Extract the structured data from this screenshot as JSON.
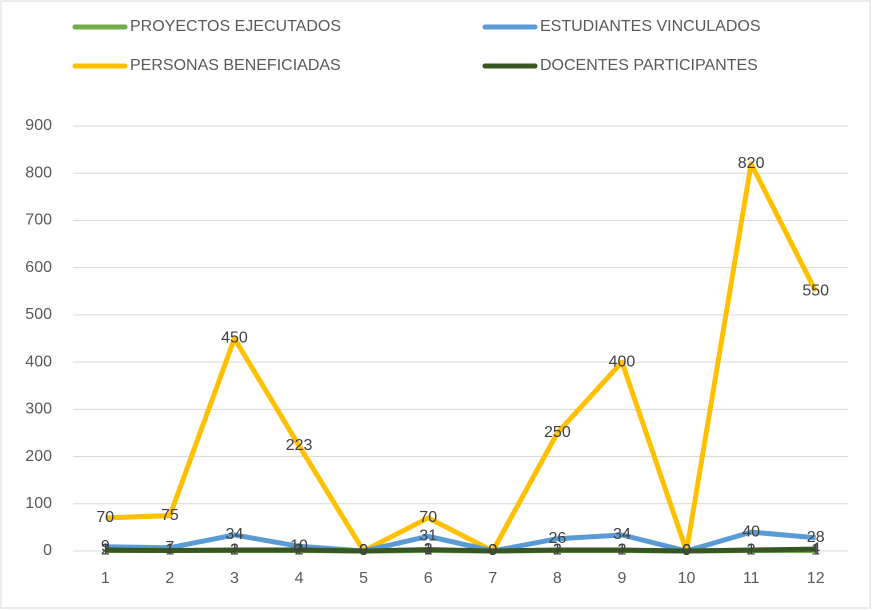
{
  "chart_data": {
    "type": "line",
    "categories": [
      "1",
      "2",
      "3",
      "4",
      "5",
      "6",
      "7",
      "8",
      "9",
      "10",
      "11",
      "12"
    ],
    "series": [
      {
        "name": "PROYECTOS EJECUTADOS",
        "color": "#70ad47",
        "values": [
          1,
          1,
          1,
          1,
          0,
          1,
          0,
          1,
          1,
          0,
          1,
          1
        ]
      },
      {
        "name": "ESTUDIANTES VINCULADOS",
        "color": "#5b9bd5",
        "values": [
          9,
          7,
          34,
          10,
          0,
          31,
          0,
          26,
          34,
          0,
          40,
          28
        ]
      },
      {
        "name": "PERSONAS BENEFICIADAS",
        "color": "#ffc000",
        "values": [
          70,
          75,
          450,
          223,
          0,
          70,
          0,
          250,
          400,
          0,
          820,
          550
        ]
      },
      {
        "name": "DOCENTES PARTICIPANTES",
        "color": "#375623",
        "values": [
          2,
          1,
          2,
          2,
          0,
          3,
          0,
          2,
          2,
          0,
          2,
          4
        ]
      }
    ],
    "ylim": [
      0,
      900
    ],
    "yticks": [
      0,
      100,
      200,
      300,
      400,
      500,
      600,
      700,
      800,
      900
    ],
    "grid": true
  }
}
